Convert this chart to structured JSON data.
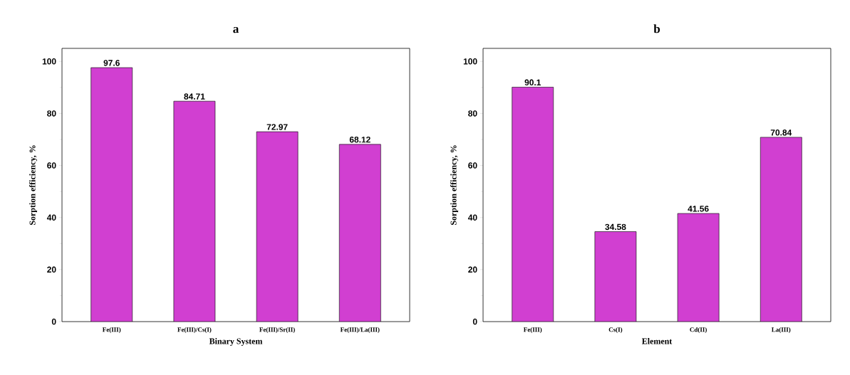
{
  "chart_data": [
    {
      "type": "bar",
      "title": "a",
      "xlabel": "Binary System",
      "ylabel": "Sorption efficiency, %",
      "categories": [
        "Fe(III)",
        "Fe(III)/Cs(I)",
        "Fe(III)/Sr(II)",
        "Fe(III)/La(III)"
      ],
      "values": [
        97.6,
        84.71,
        72.97,
        68.12
      ],
      "color": "#d13fd1",
      "data_labels": true,
      "ylim": [
        0,
        105
      ],
      "yticks": [
        0,
        20,
        40,
        60,
        80,
        100
      ]
    },
    {
      "type": "bar",
      "title": "b",
      "xlabel": "Element",
      "ylabel": "Sorption efficiency, %",
      "categories": [
        "Fe(III)",
        "Cs(I)",
        "Cd(II)",
        "La(III)"
      ],
      "values": [
        90.1,
        34.58,
        41.56,
        70.84
      ],
      "color": "#d13fd1",
      "data_labels": true,
      "ylim": [
        0,
        105
      ],
      "yticks": [
        0,
        20,
        40,
        60,
        80,
        100
      ]
    }
  ]
}
